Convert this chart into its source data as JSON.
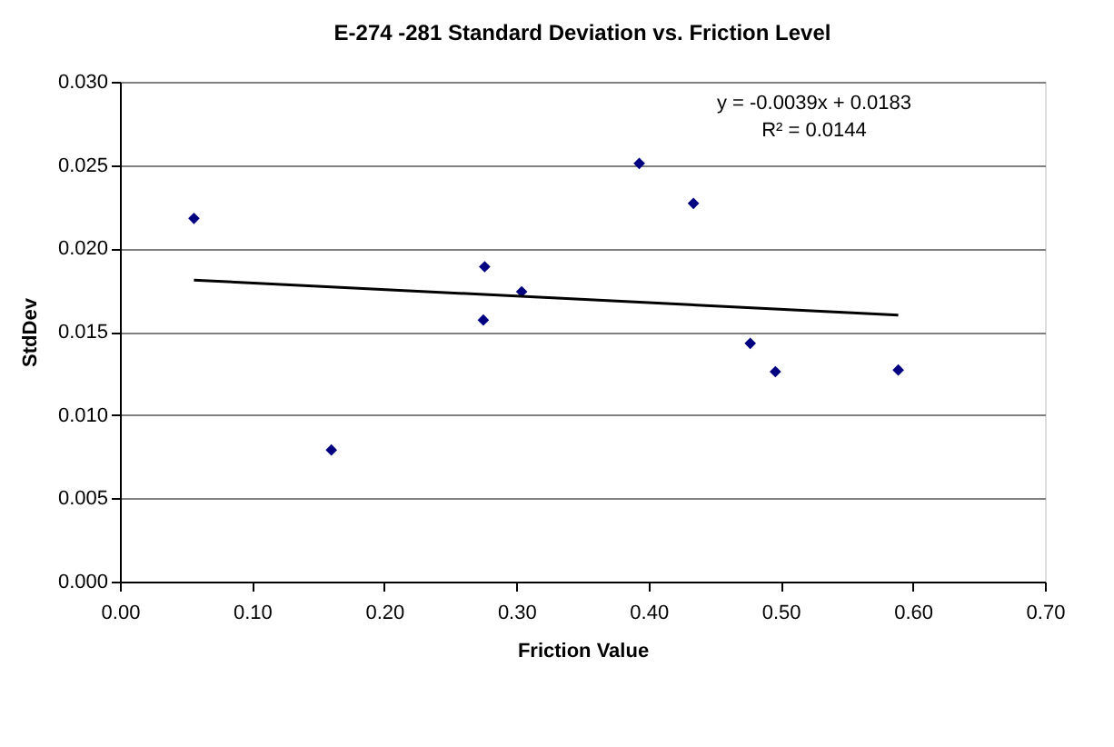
{
  "chart_data": {
    "type": "scatter",
    "title": "E-274 -281 Standard Deviation vs. Friction Level",
    "xlabel": "Friction Value",
    "ylabel": "StdDev",
    "xlim": [
      0,
      0.7
    ],
    "xticks": [
      {
        "value": 0,
        "label": "0.00"
      },
      {
        "value": 0.1,
        "label": "0.10"
      },
      {
        "value": 0.2,
        "label": "0.20"
      },
      {
        "value": 0.3,
        "label": "0.30"
      },
      {
        "value": 0.4,
        "label": "0.40"
      },
      {
        "value": 0.5,
        "label": "0.50"
      },
      {
        "value": 0.6,
        "label": "0.60"
      },
      {
        "value": 0.7,
        "label": "0.70"
      }
    ],
    "ylim": [
      0,
      0.03
    ],
    "yticks": [
      {
        "value": 0,
        "label": "0.000"
      },
      {
        "value": 0.005,
        "label": "0.005"
      },
      {
        "value": 0.01,
        "label": "0.010"
      },
      {
        "value": 0.015,
        "label": "0.015"
      },
      {
        "value": 0.02,
        "label": "0.020"
      },
      {
        "value": 0.025,
        "label": "0.025"
      },
      {
        "value": 0.03,
        "label": "0.030"
      }
    ],
    "grid": "y",
    "series": [
      {
        "color": "#000080",
        "marker": "diamond",
        "x": [
          0.056,
          0.16,
          0.276,
          0.275,
          0.304,
          0.393,
          0.434,
          0.477,
          0.496,
          0.589
        ],
        "values": [
          0.0218,
          0.0079,
          0.0189,
          0.0157,
          0.0174,
          0.0251,
          0.0227,
          0.0143,
          0.0126,
          0.0127
        ]
      },
      {
        "type": "line",
        "color": "#000000",
        "marker": "none",
        "line_style": "solid",
        "x": [
          0.056,
          0.589
        ],
        "values": [
          0.0181,
          0.016
        ]
      }
    ],
    "annotations": [
      "y = -0.0039x + 0.0183",
      "R² = 0.0144"
    ]
  }
}
